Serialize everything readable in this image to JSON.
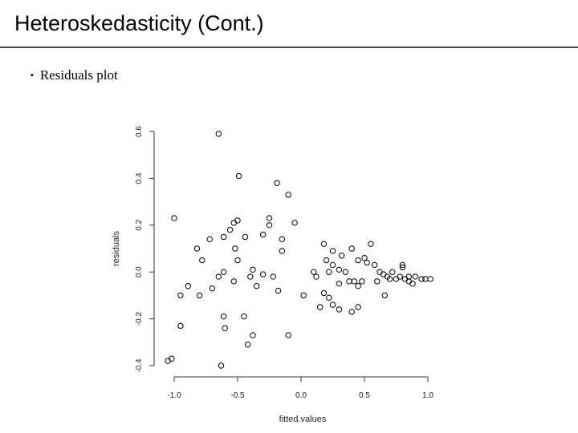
{
  "slide": {
    "title": "Heteroskedasticity (Cont.)",
    "bullet_icon": "square-bullet-icon",
    "bullet_text": "Residuals plot"
  },
  "chart_data": {
    "type": "scatter",
    "title": "",
    "xlabel": "fitted.values",
    "ylabel": "residuals",
    "xlim": [
      -1.0,
      1.0
    ],
    "ylim": [
      -0.4,
      0.6
    ],
    "x_ticks": [
      -1.0,
      -0.5,
      0.0,
      0.5,
      1.0
    ],
    "x_tick_labels": [
      "-1.0",
      "-0.5",
      "0.0",
      "0.5",
      "1.0"
    ],
    "y_ticks": [
      -0.4,
      -0.2,
      0.0,
      0.2,
      0.4,
      0.6
    ],
    "y_tick_labels": [
      "-0.4",
      "-0.2",
      "0.0",
      "0.2",
      "0.4",
      "0.6"
    ],
    "grid": false,
    "series": [
      {
        "marker": "open-circle",
        "color": "#000000",
        "points": [
          [
            -0.65,
            0.59
          ],
          [
            -0.49,
            0.41
          ],
          [
            -0.19,
            0.38
          ],
          [
            -0.1,
            0.33
          ],
          [
            -1.0,
            0.23
          ],
          [
            -0.5,
            0.22
          ],
          [
            -0.25,
            0.23
          ],
          [
            -0.53,
            0.21
          ],
          [
            -0.25,
            0.2
          ],
          [
            -0.05,
            0.21
          ],
          [
            -0.3,
            0.16
          ],
          [
            -0.56,
            0.18
          ],
          [
            -0.61,
            0.15
          ],
          [
            -0.44,
            0.15
          ],
          [
            -0.72,
            0.14
          ],
          [
            -0.15,
            0.14
          ],
          [
            -0.82,
            0.1
          ],
          [
            -0.52,
            0.1
          ],
          [
            -0.15,
            0.09
          ],
          [
            -0.78,
            0.05
          ],
          [
            -0.5,
            0.05
          ],
          [
            -0.38,
            0.01
          ],
          [
            -0.61,
            0.0
          ],
          [
            -0.65,
            -0.02
          ],
          [
            -0.53,
            -0.04
          ],
          [
            -0.4,
            -0.02
          ],
          [
            -0.35,
            -0.06
          ],
          [
            -0.3,
            -0.01
          ],
          [
            -0.22,
            -0.02
          ],
          [
            -0.89,
            -0.06
          ],
          [
            -0.7,
            -0.07
          ],
          [
            -0.18,
            -0.08
          ],
          [
            -0.95,
            -0.1
          ],
          [
            -0.8,
            -0.1
          ],
          [
            -0.61,
            -0.19
          ],
          [
            -0.6,
            -0.24
          ],
          [
            -0.45,
            -0.19
          ],
          [
            -0.38,
            -0.27
          ],
          [
            -0.42,
            -0.31
          ],
          [
            -0.1,
            -0.27
          ],
          [
            -0.95,
            -0.23
          ],
          [
            -1.02,
            -0.37
          ],
          [
            -1.05,
            -0.38
          ],
          [
            -0.63,
            -0.4
          ],
          [
            0.1,
            0.0
          ],
          [
            0.12,
            -0.02
          ],
          [
            0.18,
            -0.09
          ],
          [
            0.22,
            0.0
          ],
          [
            0.2,
            0.05
          ],
          [
            0.25,
            0.03
          ],
          [
            0.3,
            0.01
          ],
          [
            0.35,
            0.0
          ],
          [
            0.18,
            0.12
          ],
          [
            0.25,
            0.09
          ],
          [
            0.32,
            0.07
          ],
          [
            0.4,
            0.1
          ],
          [
            0.45,
            0.05
          ],
          [
            0.5,
            0.06
          ],
          [
            0.55,
            0.12
          ],
          [
            0.58,
            0.03
          ],
          [
            0.52,
            0.04
          ],
          [
            0.42,
            -0.04
          ],
          [
            0.45,
            -0.06
          ],
          [
            0.48,
            -0.04
          ],
          [
            0.38,
            -0.04
          ],
          [
            0.3,
            -0.05
          ],
          [
            0.22,
            -0.11
          ],
          [
            0.15,
            -0.15
          ],
          [
            0.25,
            -0.14
          ],
          [
            0.3,
            -0.16
          ],
          [
            0.4,
            -0.17
          ],
          [
            0.45,
            -0.15
          ],
          [
            0.6,
            -0.04
          ],
          [
            0.62,
            0.0
          ],
          [
            0.65,
            -0.01
          ],
          [
            0.68,
            -0.02
          ],
          [
            0.72,
            0.0
          ],
          [
            0.75,
            -0.03
          ],
          [
            0.78,
            -0.02
          ],
          [
            0.8,
            0.02
          ],
          [
            0.82,
            -0.03
          ],
          [
            0.85,
            -0.02
          ],
          [
            0.88,
            -0.05
          ],
          [
            0.9,
            -0.02
          ],
          [
            0.95,
            -0.03
          ],
          [
            0.98,
            -0.03
          ],
          [
            1.02,
            -0.03
          ],
          [
            0.8,
            0.03
          ],
          [
            0.85,
            -0.04
          ],
          [
            0.7,
            -0.03
          ],
          [
            0.66,
            -0.1
          ],
          [
            0.02,
            -0.1
          ]
        ]
      }
    ]
  }
}
